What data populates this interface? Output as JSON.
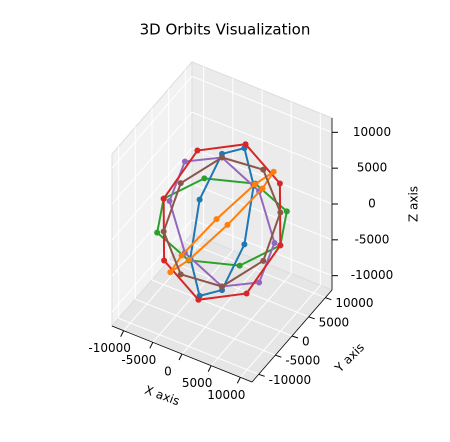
{
  "chart_data": {
    "type": "scatter3d",
    "title": "3D Orbits Visualization",
    "xlabel": "X axis",
    "ylabel": "Y axis",
    "zlabel": "Z axis",
    "xlim": [
      -12000,
      12000
    ],
    "ylim": [
      -12000,
      12000
    ],
    "zlim": [
      -12000,
      12000
    ],
    "xticks": [
      -10000,
      -5000,
      0,
      5000,
      10000
    ],
    "yticks": [
      -10000,
      -5000,
      0,
      5000,
      10000
    ],
    "zticks": [
      -10000,
      -5000,
      0,
      5000,
      10000
    ],
    "grid": true,
    "series": [
      {
        "color": "#2ca02c",
        "x": [
          10000,
          7071,
          0,
          -7071,
          -10000,
          -7071,
          0,
          7071
        ],
        "y": [
          0,
          7071,
          10000,
          7071,
          0,
          -7071,
          -10000,
          -7071
        ],
        "z": [
          0,
          0,
          0,
          0,
          0,
          0,
          0,
          0
        ]
      },
      {
        "color": "#9467bd",
        "x": [
          9000,
          6364,
          0,
          -6364,
          -9000,
          -6364,
          0,
          6364
        ],
        "y": [
          0,
          0,
          0,
          0,
          0,
          0,
          0,
          0
        ],
        "z": [
          0,
          6364,
          9000,
          6364,
          0,
          -6364,
          -9000,
          -6364
        ]
      },
      {
        "color": "#1f77b4",
        "x": [
          0,
          0,
          0,
          0,
          0,
          0,
          0,
          0
        ],
        "y": [
          9500,
          6718,
          0,
          -6718,
          -9500,
          -6718,
          0,
          6718
        ],
        "z": [
          0,
          6718,
          9500,
          6718,
          0,
          -6718,
          -9500,
          -6718
        ]
      },
      {
        "color": "#d62728",
        "x": [
          10000,
          7071,
          0,
          -7071,
          -10000,
          -7071,
          0,
          7071
        ],
        "y": [
          0,
          5000,
          7071,
          5000,
          0,
          -5000,
          -7071,
          -5000
        ],
        "z": [
          0,
          5000,
          7071,
          5000,
          0,
          -5000,
          -7071,
          -5000
        ]
      },
      {
        "color": "#ff7f0e",
        "x": [
          0,
          4900,
          6930,
          4900,
          0,
          -4900,
          -6930,
          -4900
        ],
        "y": [
          9800,
          6930,
          0,
          -6930,
          -9800,
          -6930,
          0,
          6930
        ],
        "z": [
          0,
          4900,
          6930,
          4900,
          0,
          -4900,
          -6930,
          -4900
        ]
      },
      {
        "color": "#8c564b",
        "x": [
          6364,
          4500,
          0,
          -4500,
          -6364,
          -4500,
          0,
          4500
        ],
        "y": [
          6364,
          4500,
          0,
          -4500,
          -6364,
          -4500,
          0,
          4500
        ],
        "z": [
          0,
          6364,
          9000,
          6364,
          0,
          -6364,
          -9000,
          -6364
        ]
      }
    ]
  }
}
